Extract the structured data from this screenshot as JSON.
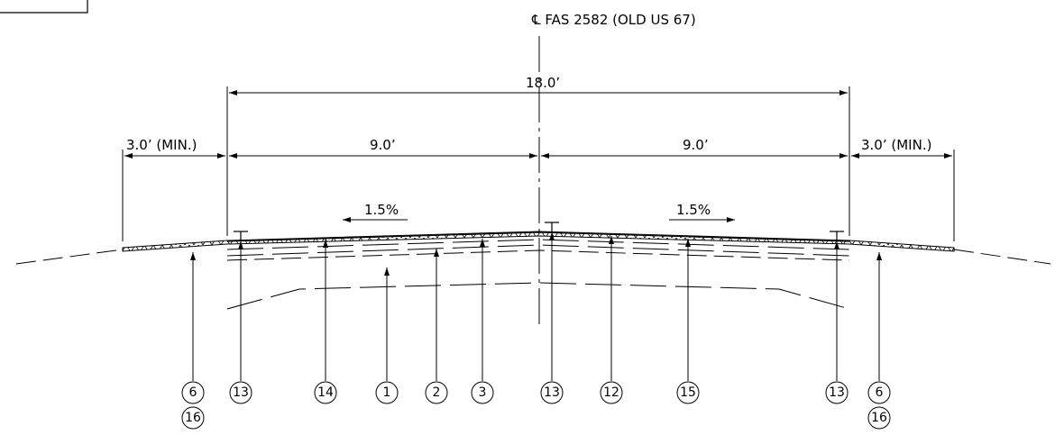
{
  "centerline_label": "℄ FAS 2582 (OLD US 67)",
  "dimensions": {
    "overall": "18.0’",
    "left_lane": "9.0’",
    "right_lane": "9.0’",
    "left_shoulder": "3.0’ (MIN.)",
    "right_shoulder": "3.0’ (MIN.)"
  },
  "slopes": {
    "left": "1.5%",
    "right": "1.5%"
  },
  "callouts": [
    {
      "id": "callout-6-left",
      "label": "6",
      "sub": "16"
    },
    {
      "id": "callout-13-left",
      "label": "13"
    },
    {
      "id": "callout-14",
      "label": "14"
    },
    {
      "id": "callout-1",
      "label": "1"
    },
    {
      "id": "callout-2",
      "label": "2"
    },
    {
      "id": "callout-3",
      "label": "3"
    },
    {
      "id": "callout-13-center",
      "label": "13"
    },
    {
      "id": "callout-12",
      "label": "12"
    },
    {
      "id": "callout-15",
      "label": "15"
    },
    {
      "id": "callout-13-right",
      "label": "13"
    },
    {
      "id": "callout-6-right",
      "label": "6",
      "sub": "16"
    }
  ]
}
